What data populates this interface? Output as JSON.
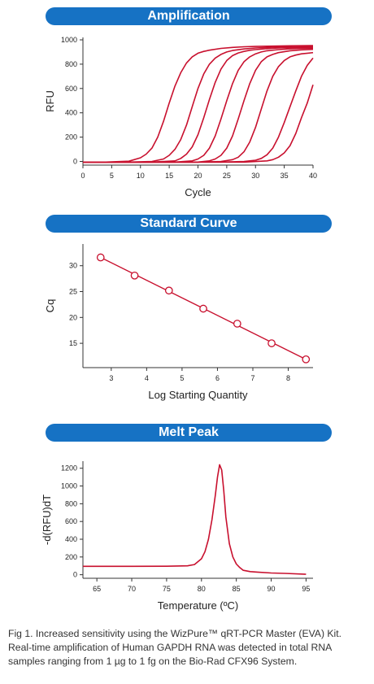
{
  "colors": {
    "banner": "#1672c4",
    "series": "#c8102e",
    "axis": "#333333"
  },
  "chart_data": [
    {
      "type": "line",
      "title": "Amplification",
      "xlabel": "Cycle",
      "ylabel": "RFU",
      "xlim": [
        0,
        40
      ],
      "ylim": [
        -30,
        1020
      ],
      "xticks": [
        0,
        5,
        10,
        15,
        20,
        25,
        30,
        35,
        40
      ],
      "yticks": [
        0,
        200,
        400,
        600,
        800,
        1000
      ],
      "series": [
        {
          "x": [
            0,
            4,
            8,
            10,
            11,
            12,
            13,
            14,
            15,
            16,
            17,
            18,
            19,
            20,
            21,
            22,
            24,
            26,
            28,
            30,
            32,
            34,
            36,
            38,
            40
          ],
          "values": [
            -5,
            -5,
            2,
            30,
            60,
            110,
            200,
            330,
            480,
            620,
            730,
            810,
            860,
            890,
            905,
            915,
            930,
            938,
            943,
            946,
            948,
            950,
            951,
            952,
            953
          ]
        },
        {
          "x": [
            0,
            4,
            8,
            12,
            14,
            15,
            16,
            17,
            18,
            19,
            20,
            21,
            22,
            23,
            24,
            25,
            26,
            28,
            30,
            32,
            34,
            36,
            38,
            40
          ],
          "values": [
            -5,
            -5,
            -5,
            0,
            20,
            50,
            100,
            180,
            300,
            450,
            600,
            720,
            800,
            850,
            880,
            900,
            912,
            925,
            933,
            938,
            942,
            945,
            947,
            948
          ]
        },
        {
          "x": [
            0,
            4,
            8,
            12,
            16,
            17,
            18,
            19,
            20,
            21,
            22,
            23,
            24,
            25,
            26,
            27,
            28,
            29,
            30,
            32,
            34,
            36,
            38,
            40
          ],
          "values": [
            -5,
            -5,
            -5,
            -5,
            5,
            25,
            60,
            120,
            220,
            360,
            510,
            650,
            760,
            830,
            870,
            892,
            905,
            914,
            920,
            928,
            933,
            936,
            938,
            940
          ]
        },
        {
          "x": [
            0,
            4,
            8,
            12,
            16,
            19,
            20,
            21,
            22,
            23,
            24,
            25,
            26,
            27,
            28,
            29,
            30,
            31,
            32,
            34,
            36,
            38,
            40
          ],
          "values": [
            -5,
            -5,
            -5,
            -5,
            -5,
            5,
            20,
            50,
            110,
            210,
            350,
            500,
            640,
            750,
            820,
            860,
            885,
            900,
            910,
            920,
            926,
            930,
            932
          ]
        },
        {
          "x": [
            0,
            4,
            8,
            12,
            16,
            20,
            22,
            23,
            24,
            25,
            26,
            27,
            28,
            29,
            30,
            31,
            32,
            33,
            34,
            36,
            38,
            40
          ],
          "values": [
            -5,
            -5,
            -5,
            -5,
            -5,
            -5,
            5,
            20,
            50,
            110,
            210,
            350,
            500,
            640,
            750,
            820,
            860,
            880,
            895,
            910,
            918,
            922
          ]
        },
        {
          "x": [
            0,
            4,
            8,
            12,
            16,
            20,
            24,
            26,
            27,
            28,
            29,
            30,
            31,
            32,
            33,
            34,
            35,
            36,
            37,
            38,
            40
          ],
          "values": [
            -5,
            -5,
            -5,
            -5,
            -5,
            -5,
            0,
            15,
            35,
            80,
            160,
            280,
            430,
            580,
            700,
            780,
            830,
            860,
            875,
            885,
            895
          ]
        },
        {
          "x": [
            0,
            4,
            8,
            12,
            16,
            20,
            24,
            28,
            30,
            31,
            32,
            33,
            34,
            35,
            36,
            37,
            38,
            39,
            40
          ],
          "values": [
            -5,
            -5,
            -5,
            -5,
            -5,
            -5,
            -5,
            0,
            10,
            25,
            55,
            110,
            200,
            320,
            450,
            580,
            700,
            790,
            850
          ]
        },
        {
          "x": [
            0,
            4,
            8,
            12,
            16,
            20,
            24,
            28,
            32,
            33,
            34,
            35,
            36,
            37,
            38,
            39,
            40
          ],
          "values": [
            -5,
            -5,
            -5,
            -5,
            -5,
            -5,
            -5,
            -5,
            5,
            15,
            35,
            70,
            130,
            230,
            360,
            480,
            630
          ]
        }
      ]
    },
    {
      "type": "scatter",
      "title": "Standard Curve",
      "xlabel": "Log Starting Quantity",
      "ylabel": "Cq",
      "xlim": [
        2.2,
        8.7
      ],
      "ylim": [
        10.3,
        34.2
      ],
      "xticks": [
        3,
        4,
        5,
        6,
        7,
        8
      ],
      "yticks": [
        15,
        20,
        25,
        30
      ],
      "points": [
        {
          "x": 2.7,
          "y": 31.6
        },
        {
          "x": 3.66,
          "y": 28.1
        },
        {
          "x": 4.63,
          "y": 25.2
        },
        {
          "x": 5.6,
          "y": 21.7
        },
        {
          "x": 6.56,
          "y": 18.8
        },
        {
          "x": 7.53,
          "y": 15.0
        },
        {
          "x": 8.5,
          "y": 11.9
        }
      ],
      "fit": {
        "x": [
          2.7,
          8.5
        ],
        "y": [
          31.6,
          11.9
        ]
      }
    },
    {
      "type": "line",
      "title": "Melt Peak",
      "xlabel": "Temperature (ºC)",
      "ylabel": "-d(RFU)dT",
      "xlim": [
        63,
        96
      ],
      "ylim": [
        -40,
        1280
      ],
      "xticks": [
        65,
        70,
        75,
        80,
        85,
        90,
        95
      ],
      "yticks": [
        0,
        200,
        400,
        600,
        800,
        1000,
        1200
      ],
      "series": [
        {
          "x": [
            63,
            70,
            75,
            78,
            79,
            80,
            80.5,
            81,
            81.5,
            82,
            82.3,
            82.6,
            82.9,
            83.2,
            83.5,
            84,
            84.5,
            85,
            85.5,
            86,
            87,
            88,
            90,
            92,
            95
          ],
          "values": [
            95,
            95,
            96,
            100,
            115,
            180,
            260,
            400,
            620,
            900,
            1100,
            1240,
            1180,
            950,
            650,
            350,
            200,
            120,
            80,
            50,
            35,
            30,
            20,
            15,
            5
          ]
        }
      ]
    }
  ],
  "caption": {
    "line1": "Fig 1. Increased sensitivity using the WizPure™ qRT-PCR Master (EVA) Kit.",
    "line2": "Real-time amplification of Human GAPDH RNA was detected in total RNA",
    "line3": "samples ranging from 1 µg to 1 fg on the Bio-Rad CFX96 System."
  }
}
